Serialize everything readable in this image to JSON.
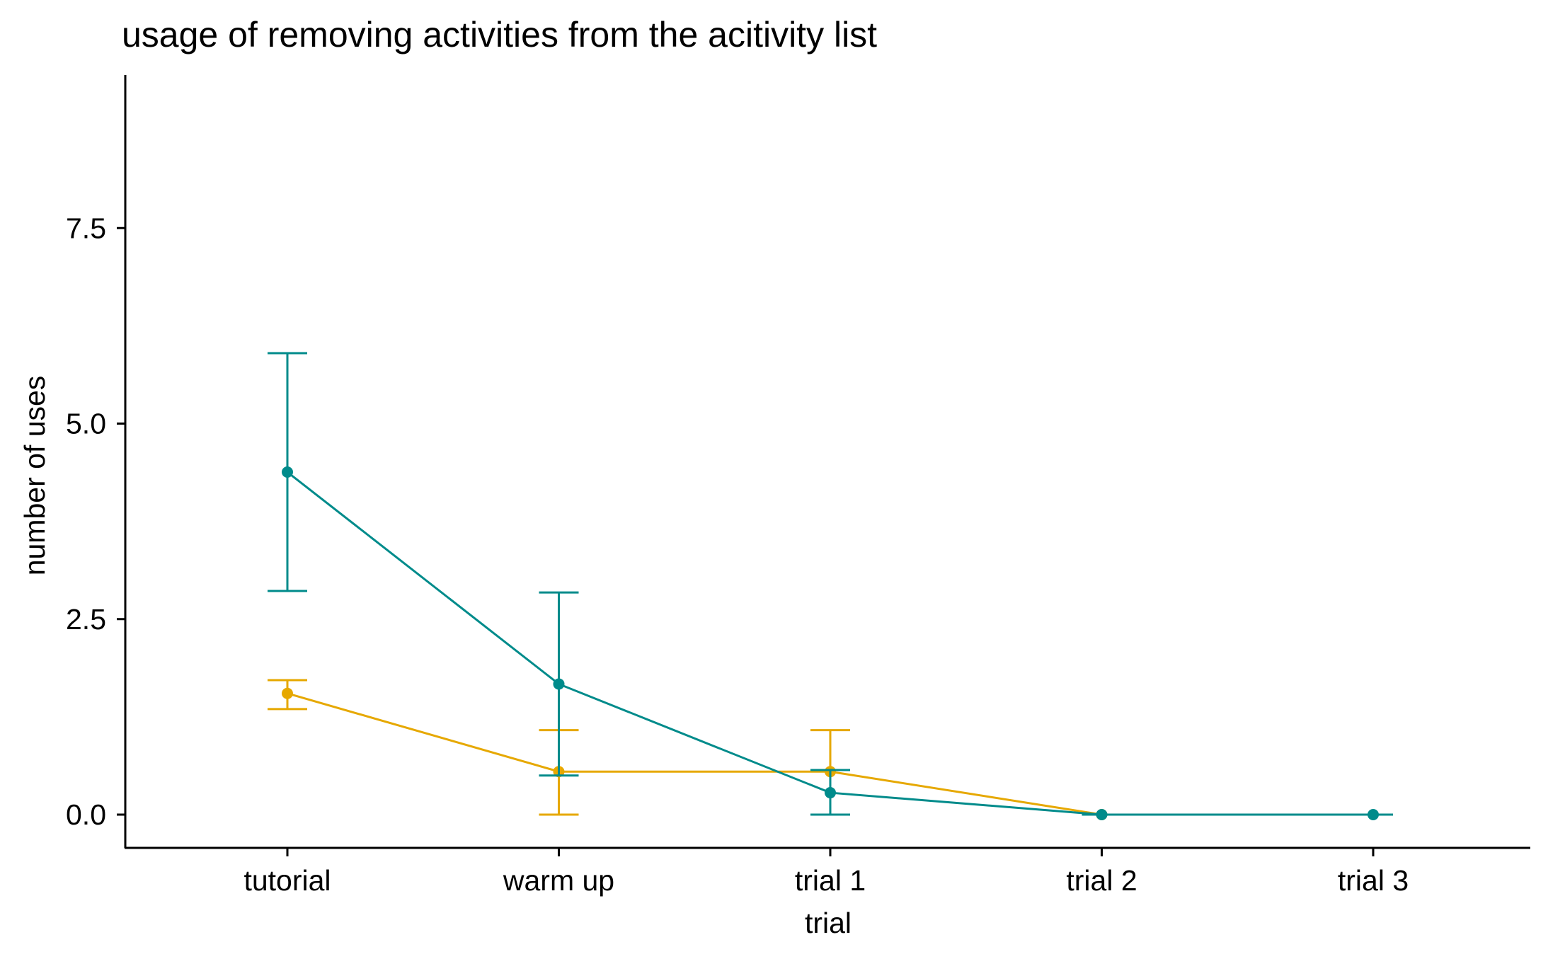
{
  "chart_data": {
    "type": "line",
    "title": "usage of removing activities from the acitivity list",
    "xlabel": "trial",
    "ylabel": "number of uses",
    "categories": [
      "tutorial",
      "warm up",
      "trial 1",
      "trial 2",
      "trial 3"
    ],
    "yticks": [
      "0.0",
      "2.5",
      "5.0",
      "7.5"
    ],
    "ylim": [
      -0.45,
      9.3
    ],
    "grid": false,
    "legend": "none",
    "series": [
      {
        "color": "#E6A800",
        "values": [
          1.55,
          0.55,
          0.55,
          0.0,
          null
        ],
        "error_low": [
          1.35,
          0.0,
          0.0,
          0.0,
          null
        ],
        "error_high": [
          1.72,
          1.08,
          1.08,
          0.0,
          null
        ]
      },
      {
        "color": "#008B8B",
        "values": [
          4.38,
          1.67,
          0.28,
          0.0,
          0.0
        ],
        "error_low": [
          2.86,
          0.5,
          0.0,
          0.0,
          0.0
        ],
        "error_high": [
          5.9,
          2.84,
          0.57,
          0.0,
          0.0
        ]
      }
    ]
  }
}
